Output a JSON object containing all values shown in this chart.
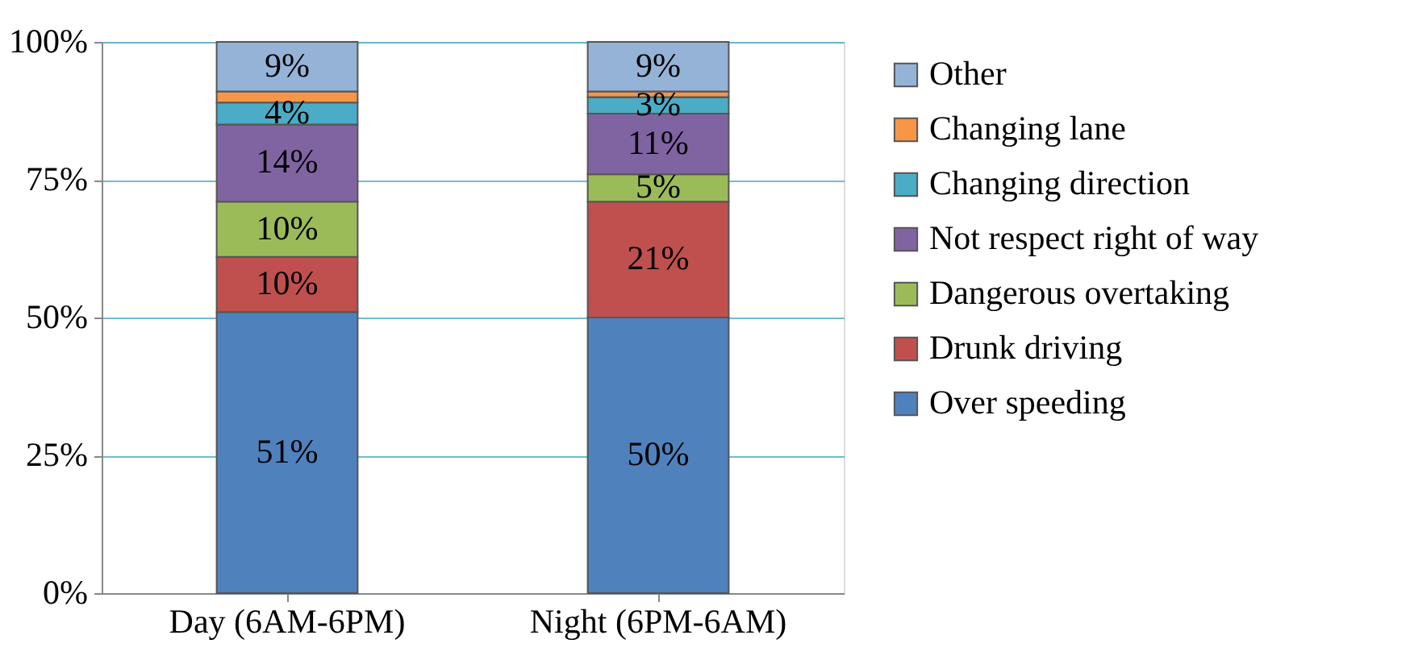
{
  "chart_data": {
    "type": "bar",
    "stacked": true,
    "categories": [
      "Day (6AM-6PM)",
      "Night (6PM-6AM)"
    ],
    "series": [
      {
        "name": "Over speeding",
        "color": "#4f81bd",
        "values": [
          51,
          50
        ],
        "value_labels": [
          "51%",
          "50%"
        ]
      },
      {
        "name": "Drunk driving",
        "color": "#c0504d",
        "values": [
          10,
          21
        ],
        "value_labels": [
          "10%",
          "21%"
        ]
      },
      {
        "name": "Dangerous overtaking",
        "color": "#9bbb59",
        "values": [
          10,
          5
        ],
        "value_labels": [
          "10%",
          "5%"
        ]
      },
      {
        "name": "Not respect right of way",
        "color": "#8064a2",
        "values": [
          14,
          11
        ],
        "value_labels": [
          "14%",
          "11%"
        ]
      },
      {
        "name": "Changing direction",
        "color": "#4bacc6",
        "values": [
          4,
          3
        ],
        "value_labels": [
          "4%",
          "3%"
        ]
      },
      {
        "name": "Changing lane",
        "color": "#f79646",
        "values": [
          2,
          1
        ],
        "value_labels": [
          null,
          null
        ]
      },
      {
        "name": "Other",
        "color": "#95b3d7",
        "values": [
          9,
          9
        ],
        "value_labels": [
          "9%",
          "9%"
        ]
      }
    ],
    "ylim": [
      0,
      100
    ],
    "yticks": [
      {
        "value": 0,
        "label": "0%"
      },
      {
        "value": 25,
        "label": "25%"
      },
      {
        "value": 50,
        "label": "50%"
      },
      {
        "value": 75,
        "label": "75%"
      },
      {
        "value": 100,
        "label": "100%"
      }
    ],
    "grid": "y",
    "legend": "right"
  }
}
